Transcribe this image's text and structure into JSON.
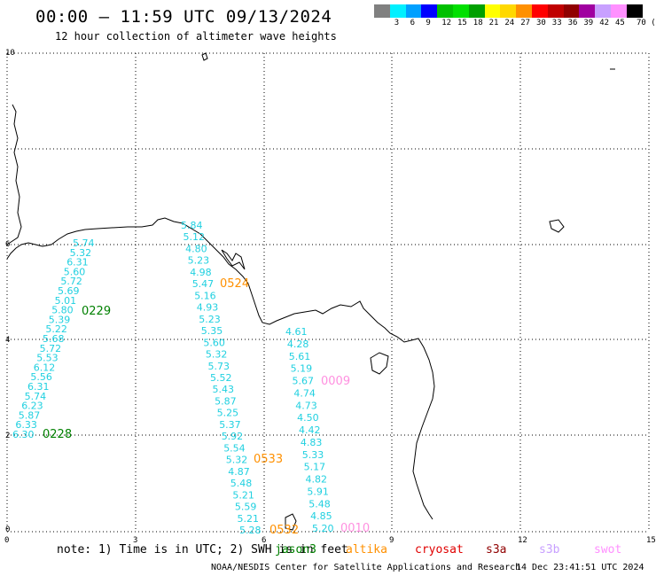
{
  "header": {
    "title": "00:00 — 11:59 UTC 09/13/2024",
    "subtitle": "12 hour collection of altimeter wave heights"
  },
  "legend": {
    "unit": "70 (ft)",
    "bins": [
      {
        "label": "",
        "color": "#808080"
      },
      {
        "label": "3",
        "color": "#00f0ff"
      },
      {
        "label": "6",
        "color": "#00a0ff"
      },
      {
        "label": "9",
        "color": "#0000ff"
      },
      {
        "label": "12",
        "color": "#00c000"
      },
      {
        "label": "15",
        "color": "#00e000"
      },
      {
        "label": "18",
        "color": "#00a000"
      },
      {
        "label": "21",
        "color": "#ffff00"
      },
      {
        "label": "24",
        "color": "#ffd800"
      },
      {
        "label": "27",
        "color": "#ff9000"
      },
      {
        "label": "30",
        "color": "#ff0000"
      },
      {
        "label": "33",
        "color": "#c00000"
      },
      {
        "label": "36",
        "color": "#900000"
      },
      {
        "label": "39",
        "color": "#a000a0"
      },
      {
        "label": "42",
        "color": "#c8a0ff"
      },
      {
        "label": "45",
        "color": "#ff90ff"
      },
      {
        "label": "",
        "color": "#000000"
      }
    ]
  },
  "map": {
    "x_ticks": [
      "0",
      "3",
      "6",
      "9",
      "12",
      "15"
    ],
    "y_ticks": [
      "10",
      "6",
      "4",
      "2",
      "0"
    ],
    "colors": {
      "wave_label": "#20d0e0",
      "time_jason": "#008000",
      "time_altika": "#ff9000",
      "time_swot": "#ff90e0",
      "coast": "#000000",
      "grid": "#000000"
    },
    "track_a": {
      "time_labels": [
        "0229",
        "0228"
      ],
      "values": [
        "5.74",
        "5.32",
        "6.31",
        "5.60",
        "5.72",
        "5.69",
        "5.01",
        "5.80",
        "5.39",
        "5.22",
        "5.68",
        "5.72",
        "5.53",
        "6.12",
        "5.56",
        "6.31",
        "5.74",
        "6.23",
        "5.87",
        "6.33",
        "6.30"
      ]
    },
    "track_b": {
      "time_labels": [
        "0524",
        "0533",
        "0532"
      ],
      "values": [
        "5.84",
        "5.12",
        "4.80",
        "5.23",
        "4.98",
        "5.47",
        "5.16",
        "4.93",
        "5.23",
        "5.35",
        "5.60",
        "5.32",
        "5.73",
        "5.52",
        "5.43",
        "5.87",
        "5.25",
        "5.37",
        "5.92",
        "5.54",
        "5.32",
        "4.87",
        "5.48",
        "5.21",
        "5.59",
        "5.21",
        "5.28"
      ]
    },
    "track_c": {
      "time_labels": [
        "0009",
        "0010"
      ],
      "values": [
        "4.61",
        "4.28",
        "5.61",
        "5.19",
        "5.67",
        "4.74",
        "4.73",
        "4.50",
        "4.42",
        "4.83",
        "5.33",
        "5.17",
        "4.82",
        "5.91",
        "5.48",
        "4.85",
        "5.20"
      ]
    }
  },
  "footer": {
    "note": "note: 1) Time is in UTC; 2) SWH is in feet",
    "satellites": [
      {
        "name": "jason3",
        "color": "#008000"
      },
      {
        "name": "altika",
        "color": "#ff9000"
      },
      {
        "name": "cryosat",
        "color": "#e00000"
      },
      {
        "name": "s3a",
        "color": "#900000"
      },
      {
        "name": "s3b",
        "color": "#c8a0ff"
      },
      {
        "name": "swot",
        "color": "#ff90ff"
      }
    ],
    "credit": "NOAA/NESDIS Center for Satellite Applications and Research",
    "timestamp": "14 Dec 23:41:51 UTC 2024"
  }
}
